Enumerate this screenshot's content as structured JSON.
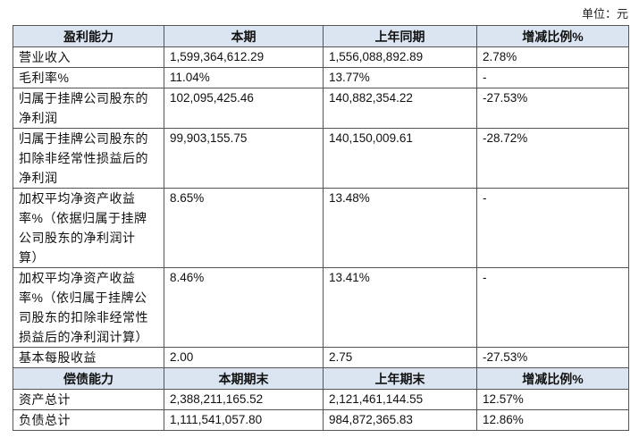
{
  "unit": "单位：元",
  "table": {
    "sections": [
      {
        "header": [
          "盈利能力",
          "本期",
          "上年同期",
          "增减比例%"
        ],
        "rows": [
          {
            "label": [
              "营业收入"
            ],
            "cells": [
              "1,599,364,612.29",
              "1,556,088,892.89",
              "2.78%"
            ]
          },
          {
            "label": [
              "毛利率%"
            ],
            "cells": [
              "11.04%",
              "13.77%",
              "-"
            ]
          },
          {
            "label": [
              "归属于挂牌公司股东的",
              "净利润"
            ],
            "cells": [
              "102,095,425.46",
              "140,882,354.22",
              "-27.53%"
            ]
          },
          {
            "label": [
              "归属于挂牌公司股东的",
              "扣除非经常性损益后的",
              "净利润"
            ],
            "cells": [
              "99,903,155.75",
              "140,150,009.61",
              "-28.72%"
            ]
          },
          {
            "label": [
              "加权平均净资产收益",
              "率%（依据归属于挂牌",
              "公司股东的净利润计",
              "算）"
            ],
            "cells": [
              "8.65%",
              "13.48%",
              "-"
            ]
          },
          {
            "label": [
              "加权平均净资产收益",
              "率%（依归属于挂牌公",
              "司股东的扣除非经常性",
              "损益后的净利润计算）"
            ],
            "cells": [
              "8.46%",
              "13.41%",
              "-"
            ]
          },
          {
            "label": [
              "基本每股收益"
            ],
            "cells": [
              "2.00",
              "2.75",
              "-27.53%"
            ]
          }
        ]
      },
      {
        "header": [
          "偿债能力",
          "本期期末",
          "上年期末",
          "增减比例%"
        ],
        "rows": [
          {
            "label": [
              "资产总计"
            ],
            "cells": [
              "2,388,211,165.52",
              "2,121,461,144.55",
              "12.57%"
            ]
          },
          {
            "label": [
              "负债总计"
            ],
            "cells": [
              "1,111,541,057.80",
              "984,872,365.83",
              "12.86%"
            ]
          }
        ]
      }
    ]
  }
}
